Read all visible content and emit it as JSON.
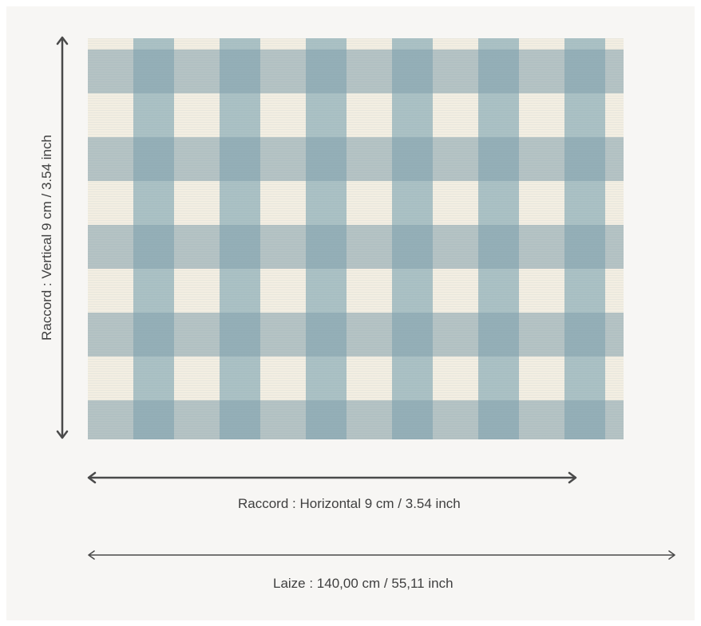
{
  "vertical_repeat": {
    "label": "Raccord : Vertical 9 cm / 3.54 inch"
  },
  "horizontal_repeat": {
    "label": "Raccord : Horizontal 9 cm / 3.54 inch"
  },
  "width": {
    "label": "Laize : 140,00 cm / 55,11 inch"
  },
  "colors": {
    "background": "#f7f6f4",
    "fabric_cream": "#f3eee2",
    "fabric_blue": "#8caeb8",
    "arrow": "#4a4a4a",
    "text": "#3f3f3f"
  }
}
